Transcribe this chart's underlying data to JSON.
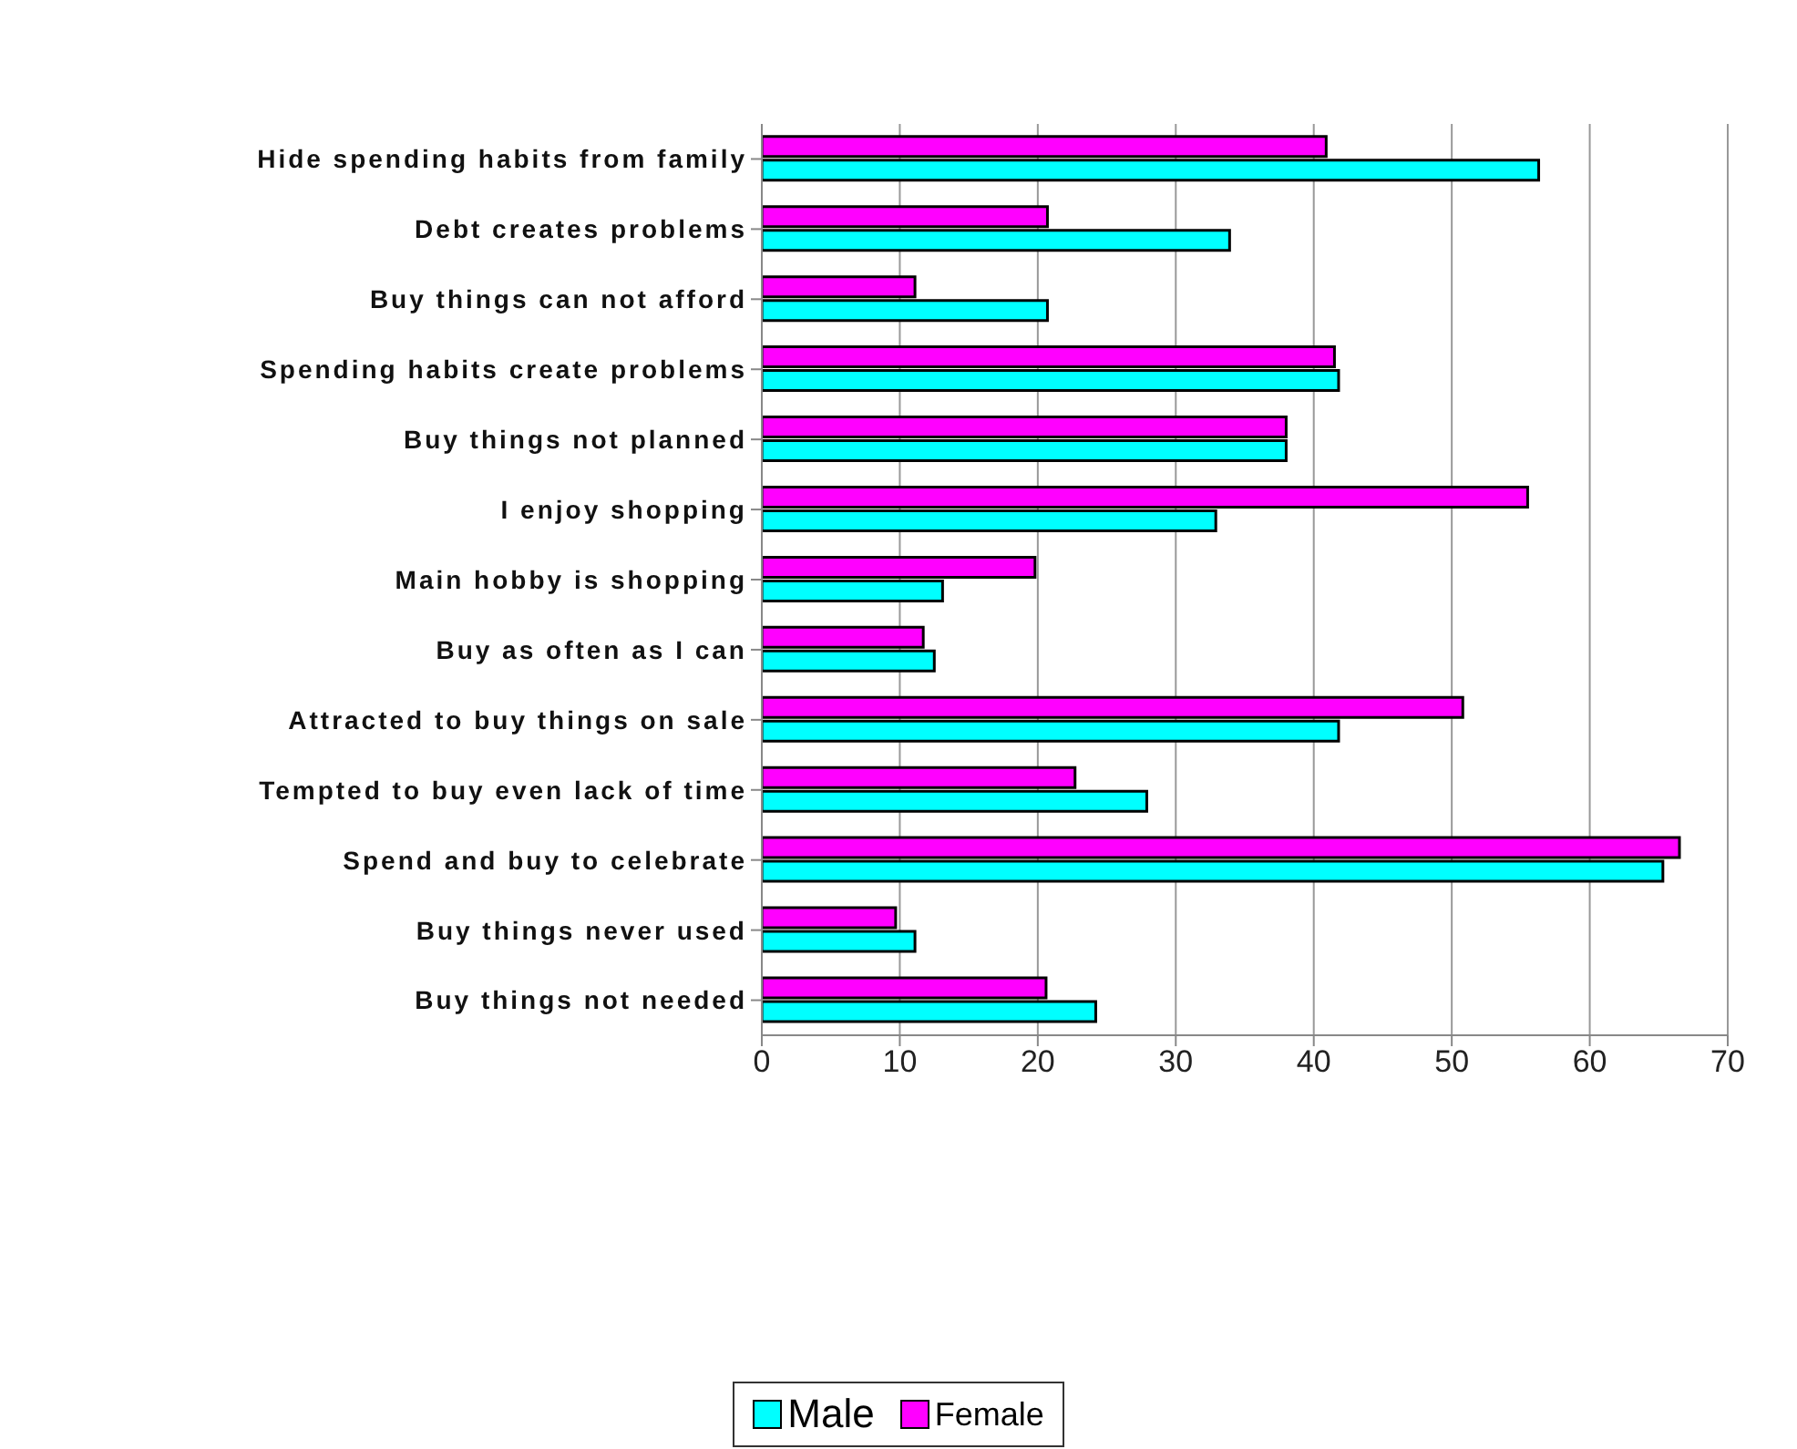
{
  "chart_data": {
    "type": "bar",
    "orientation": "horizontal",
    "categories": [
      "Hide spending habits from family",
      "Debt creates problems",
      "Buy things can not afford",
      "Spending habits create problems",
      "Buy things not planned",
      "I enjoy shopping",
      "Main hobby is shopping",
      "Buy as often as I can",
      "Attracted to buy things on sale",
      "Tempted to buy even lack of time",
      "Spend and buy to celebrate",
      "Buy things never used",
      "Buy things not needed"
    ],
    "series": [
      {
        "name": "Male",
        "color": "#00ffff",
        "values": [
          56.3,
          33.9,
          20.7,
          41.8,
          38,
          32.9,
          13.1,
          12.5,
          41.8,
          27.9,
          65.3,
          11.1,
          24.2
        ]
      },
      {
        "name": "Female",
        "color": "#ff00ff",
        "values": [
          40.9,
          20.7,
          11.1,
          41.5,
          38,
          55.5,
          19.8,
          11.7,
          50.8,
          22.7,
          66.5,
          9.7,
          20.6
        ]
      }
    ],
    "xlim": [
      0,
      70
    ],
    "xticks": [
      0,
      10,
      20,
      30,
      40,
      50,
      60,
      70
    ],
    "grid": "x",
    "legend": "bottom"
  }
}
